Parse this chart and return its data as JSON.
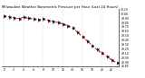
{
  "title": "Milwaukee Weather Barometric Pressure per Hour (Last 24 Hours)",
  "hours": [
    0,
    1,
    2,
    3,
    4,
    5,
    6,
    7,
    8,
    9,
    10,
    11,
    12,
    13,
    14,
    15,
    16,
    17,
    18,
    19,
    20,
    21,
    22,
    23
  ],
  "pressure": [
    29.95,
    29.93,
    29.91,
    29.89,
    29.92,
    29.9,
    29.88,
    29.86,
    29.88,
    29.85,
    29.83,
    29.8,
    29.77,
    29.73,
    29.68,
    29.58,
    29.48,
    29.38,
    29.28,
    29.18,
    29.1,
    29.02,
    28.95,
    28.88
  ],
  "ylim": [
    28.8,
    30.1
  ],
  "ytick_vals": [
    28.8,
    28.9,
    29.0,
    29.1,
    29.2,
    29.3,
    29.4,
    29.5,
    29.6,
    29.7,
    29.8,
    29.9,
    30.0,
    30.1
  ],
  "vgrid_positions": [
    0,
    4,
    8,
    12,
    16,
    20
  ],
  "bg_color": "#ffffff",
  "line_color": "#dd0000",
  "marker_color": "#000000",
  "grid_color": "#bbbbbb",
  "title_fontsize": 2.8,
  "label_fontsize": 2.2
}
